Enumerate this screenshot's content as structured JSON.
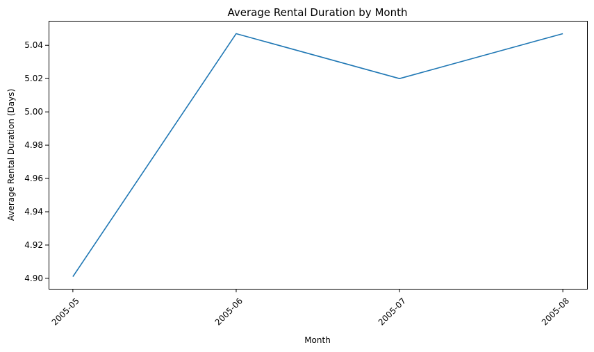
{
  "chart_data": {
    "type": "line",
    "title": "Average Rental Duration by Month",
    "xlabel": "Month",
    "ylabel": "Average Rental Duration (Days)",
    "categories": [
      "2005-05",
      "2005-06",
      "2005-07",
      "2005-08"
    ],
    "series": [
      {
        "values": [
          4.901,
          5.047,
          5.02,
          5.047
        ]
      }
    ],
    "yticks": [
      "4.90",
      "4.92",
      "4.94",
      "4.96",
      "4.98",
      "5.00",
      "5.02",
      "5.04"
    ],
    "ylim": [
      4.8937,
      5.0547
    ],
    "grid": false,
    "line_color": "#1f77b4"
  }
}
